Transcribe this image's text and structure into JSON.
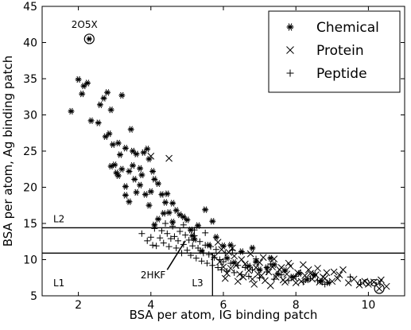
{
  "chart_data": {
    "type": "scatter",
    "title": "",
    "xlabel": "BSA per atom, IG binding patch",
    "ylabel": "BSA per atom, Ag binding patch",
    "xlim": [
      1,
      11
    ],
    "ylim": [
      5,
      45
    ],
    "xticks": [
      2,
      4,
      6,
      8,
      10
    ],
    "yticks": [
      5,
      10,
      15,
      20,
      25,
      30,
      35,
      40,
      45
    ],
    "grid": false,
    "legend": {
      "position": "top-right",
      "entries": [
        {
          "label": "Chemical",
          "marker": "asterisk"
        },
        {
          "label": "Protein",
          "marker": "x"
        },
        {
          "label": "Peptide",
          "marker": "plus"
        }
      ]
    },
    "series": [
      {
        "name": "Chemical",
        "marker": "asterisk",
        "points": [
          [
            1.8,
            30.5
          ],
          [
            2.0,
            34.9
          ],
          [
            2.1,
            32.9
          ],
          [
            2.15,
            34.0
          ],
          [
            2.25,
            34.4
          ],
          [
            2.35,
            29.2
          ],
          [
            2.6,
            31.4
          ],
          [
            2.7,
            32.3
          ],
          [
            2.75,
            27.0
          ],
          [
            2.8,
            33.1
          ],
          [
            2.85,
            27.4
          ],
          [
            2.9,
            30.7
          ],
          [
            2.95,
            25.9
          ],
          [
            3.2,
            32.7
          ],
          [
            2.9,
            22.9
          ],
          [
            3.0,
            23.1
          ],
          [
            3.05,
            22.0
          ],
          [
            3.1,
            21.6
          ],
          [
            3.15,
            24.5
          ],
          [
            3.2,
            22.5
          ],
          [
            3.3,
            20.1
          ],
          [
            3.4,
            22.2
          ],
          [
            3.5,
            23.0
          ],
          [
            3.55,
            21.1
          ],
          [
            3.6,
            19.3
          ],
          [
            3.7,
            22.6
          ],
          [
            3.3,
            18.9
          ],
          [
            3.4,
            18.0
          ],
          [
            3.6,
            24.6
          ],
          [
            3.8,
            24.8
          ],
          [
            3.9,
            25.3
          ],
          [
            3.95,
            23.9
          ],
          [
            3.7,
            20.3
          ],
          [
            3.85,
            19.0
          ],
          [
            3.95,
            17.5
          ],
          [
            4.0,
            19.4
          ],
          [
            4.1,
            21.1
          ],
          [
            4.2,
            20.5
          ],
          [
            4.3,
            19.0
          ],
          [
            4.4,
            17.9
          ],
          [
            4.5,
            16.5
          ],
          [
            4.6,
            17.8
          ],
          [
            4.7,
            16.8
          ],
          [
            4.8,
            16.2
          ],
          [
            4.35,
            16.4
          ],
          [
            4.2,
            15.6
          ],
          [
            4.1,
            14.8
          ],
          [
            5.0,
            15.5
          ],
          [
            5.1,
            14.1
          ],
          [
            5.3,
            14.7
          ],
          [
            5.5,
            16.9
          ],
          [
            5.7,
            15.3
          ],
          [
            5.8,
            13.1
          ],
          [
            5.6,
            12.0
          ],
          [
            5.4,
            11.2
          ],
          [
            5.2,
            12.8
          ],
          [
            6.0,
            11.9
          ],
          [
            6.1,
            10.2
          ],
          [
            6.3,
            9.6
          ],
          [
            6.5,
            11.1
          ],
          [
            6.7,
            9.1
          ],
          [
            6.9,
            9.7
          ],
          [
            7.0,
            8.6
          ],
          [
            7.2,
            8.9
          ],
          [
            7.4,
            9.3
          ],
          [
            7.5,
            8.0
          ],
          [
            7.7,
            8.5
          ],
          [
            7.9,
            7.6
          ],
          [
            8.1,
            8.1
          ],
          [
            8.3,
            7.2
          ],
          [
            8.5,
            7.9
          ],
          [
            8.7,
            7.0
          ],
          [
            8.9,
            6.8
          ],
          [
            3.45,
            28.0
          ],
          [
            2.55,
            28.9
          ],
          [
            3.1,
            26.1
          ],
          [
            3.3,
            25.4
          ],
          [
            3.5,
            25.0
          ],
          [
            3.75,
            21.7
          ],
          [
            4.05,
            22.2
          ],
          [
            4.45,
            19.1
          ],
          [
            4.6,
            15.2
          ],
          [
            4.9,
            15.9
          ],
          [
            5.15,
            13.3
          ],
          [
            6.2,
            12.0
          ],
          [
            6.8,
            11.6
          ],
          [
            7.3,
            10.2
          ]
        ]
      },
      {
        "name": "Protein",
        "marker": "x",
        "points": [
          [
            5.75,
            10.4
          ],
          [
            5.9,
            9.7
          ],
          [
            6.0,
            9.0
          ],
          [
            6.1,
            8.1
          ],
          [
            6.2,
            8.8
          ],
          [
            6.3,
            10.5
          ],
          [
            6.35,
            9.2
          ],
          [
            6.45,
            8.0
          ],
          [
            6.55,
            7.6
          ],
          [
            6.6,
            9.4
          ],
          [
            6.7,
            8.5
          ],
          [
            6.8,
            7.3
          ],
          [
            6.9,
            8.9
          ],
          [
            7.0,
            9.6
          ],
          [
            7.05,
            7.8
          ],
          [
            7.15,
            7.1
          ],
          [
            7.25,
            8.3
          ],
          [
            7.35,
            9.0
          ],
          [
            7.45,
            7.6
          ],
          [
            7.55,
            8.6
          ],
          [
            7.65,
            7.2
          ],
          [
            7.75,
            8.0
          ],
          [
            7.85,
            9.1
          ],
          [
            7.95,
            7.5
          ],
          [
            8.05,
            8.2
          ],
          [
            8.15,
            7.0
          ],
          [
            8.25,
            7.8
          ],
          [
            8.35,
            8.6
          ],
          [
            8.45,
            7.3
          ],
          [
            8.55,
            7.9
          ],
          [
            8.65,
            6.9
          ],
          [
            8.75,
            7.6
          ],
          [
            8.85,
            8.2
          ],
          [
            9.0,
            7.0
          ],
          [
            9.15,
            7.4
          ],
          [
            9.3,
            8.6
          ],
          [
            9.45,
            6.8
          ],
          [
            9.6,
            7.3
          ],
          [
            9.75,
            6.5
          ],
          [
            9.9,
            7.0
          ],
          [
            10.0,
            6.6
          ],
          [
            10.15,
            6.9
          ],
          [
            10.35,
            7.2
          ],
          [
            10.5,
            6.3
          ],
          [
            5.95,
            11.4
          ],
          [
            6.15,
            11.0
          ],
          [
            6.5,
            10.0
          ],
          [
            6.75,
            10.8
          ],
          [
            7.1,
            10.3
          ],
          [
            7.4,
            10.1
          ],
          [
            7.8,
            9.5
          ],
          [
            8.2,
            9.3
          ],
          [
            8.6,
            8.8
          ],
          [
            9.05,
            8.3
          ],
          [
            6.05,
            7.4
          ],
          [
            6.4,
            7.0
          ],
          [
            6.85,
            6.6
          ],
          [
            7.3,
            6.4
          ],
          [
            7.7,
            6.9
          ],
          [
            4.5,
            24.0
          ],
          [
            4.0,
            24.3
          ],
          [
            5.85,
            12.4
          ],
          [
            6.25,
            11.6
          ],
          [
            6.95,
            8.0
          ],
          [
            7.6,
            8.9
          ],
          [
            8.0,
            6.8
          ],
          [
            8.4,
            8.1
          ],
          [
            8.8,
            7.4
          ],
          [
            9.2,
            7.9
          ]
        ]
      },
      {
        "name": "Peptide",
        "marker": "plus",
        "points": [
          [
            3.9,
            12.6
          ],
          [
            4.0,
            13.1
          ],
          [
            4.1,
            14.3
          ],
          [
            4.15,
            11.9
          ],
          [
            4.25,
            13.0
          ],
          [
            4.3,
            14.0
          ],
          [
            4.35,
            12.3
          ],
          [
            4.45,
            13.6
          ],
          [
            4.5,
            11.8
          ],
          [
            4.55,
            12.9
          ],
          [
            4.6,
            14.6
          ],
          [
            4.65,
            13.2
          ],
          [
            4.7,
            11.6
          ],
          [
            4.75,
            12.6
          ],
          [
            4.8,
            13.9
          ],
          [
            4.85,
            10.9
          ],
          [
            4.9,
            12.1
          ],
          [
            4.95,
            13.4
          ],
          [
            5.0,
            11.3
          ],
          [
            5.05,
            12.7
          ],
          [
            5.1,
            10.6
          ],
          [
            5.15,
            11.9
          ],
          [
            5.2,
            13.3
          ],
          [
            5.25,
            10.2
          ],
          [
            5.3,
            11.6
          ],
          [
            5.35,
            12.5
          ],
          [
            5.4,
            9.8
          ],
          [
            5.45,
            10.9
          ],
          [
            5.5,
            12.0
          ],
          [
            5.55,
            9.5
          ],
          [
            5.6,
            10.7
          ],
          [
            5.65,
            11.8
          ],
          [
            5.7,
            9.2
          ],
          [
            5.75,
            10.3
          ],
          [
            5.8,
            11.4
          ],
          [
            5.85,
            8.9
          ],
          [
            5.9,
            10.0
          ],
          [
            5.95,
            8.6
          ],
          [
            6.0,
            9.7
          ],
          [
            6.05,
            10.9
          ],
          [
            6.1,
            8.4
          ],
          [
            6.2,
            9.5
          ],
          [
            6.3,
            8.2
          ],
          [
            6.4,
            9.2
          ],
          [
            6.5,
            7.9
          ],
          [
            6.6,
            8.9
          ],
          [
            6.7,
            7.7
          ],
          [
            6.8,
            8.6
          ],
          [
            7.0,
            7.5
          ],
          [
            7.2,
            8.3
          ],
          [
            7.4,
            7.3
          ],
          [
            7.6,
            7.9
          ],
          [
            7.8,
            7.1
          ],
          [
            8.0,
            7.7
          ],
          [
            8.2,
            6.9
          ],
          [
            8.4,
            7.4
          ],
          [
            8.6,
            7.1
          ],
          [
            8.8,
            6.6
          ],
          [
            4.4,
            15.0
          ],
          [
            4.9,
            14.8
          ],
          [
            5.2,
            14.1
          ],
          [
            3.75,
            13.6
          ],
          [
            4.05,
            12.0
          ],
          [
            5.5,
            13.7
          ],
          [
            6.25,
            11.3
          ],
          [
            6.9,
            10.1
          ],
          [
            7.3,
            9.4
          ],
          [
            9.5,
            7.6
          ]
        ]
      }
    ],
    "horizontal_lines": [
      {
        "y": 14.4,
        "label": "L2"
      },
      {
        "y": 10.9,
        "label": "L1"
      }
    ],
    "vertical_lines": [
      {
        "x": 5.7,
        "y_from": 5,
        "y_to": 10.9,
        "label": "L3"
      }
    ],
    "annotations": [
      {
        "text": "2O5X",
        "x": 2.3,
        "y": 40.5,
        "circled": true
      },
      {
        "text": "2HKF",
        "x": 4.95,
        "y": 12.6,
        "arrow": true
      },
      {
        "text": "4OGY",
        "x": 10.3,
        "y": 6.0,
        "circled": true
      }
    ]
  }
}
